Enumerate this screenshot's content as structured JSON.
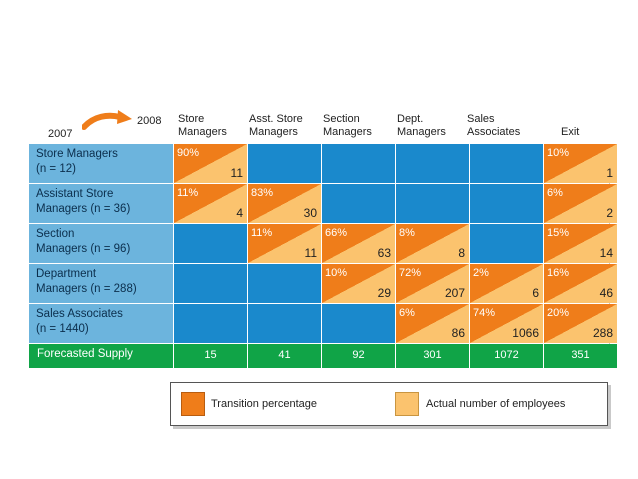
{
  "header": {
    "year_from": "2007",
    "year_to": "2008",
    "columns": [
      {
        "line1": "Store",
        "line2": "Managers"
      },
      {
        "line1": "Asst. Store",
        "line2": "Managers"
      },
      {
        "line1": "Section",
        "line2": "Managers"
      },
      {
        "line1": "Dept.",
        "line2": "Managers"
      },
      {
        "line1": "Sales",
        "line2": "Associates"
      },
      {
        "line1": "",
        "line2": "Exit"
      }
    ]
  },
  "rows": [
    {
      "label1": "Store Managers",
      "label2": "(n = 12)",
      "cells": [
        {
          "pct": "90%",
          "count": "11"
        },
        null,
        null,
        null,
        null,
        {
          "pct": "10%",
          "count": "1"
        }
      ]
    },
    {
      "label1": "Assistant Store",
      "label2": "Managers (n = 36)",
      "cells": [
        {
          "pct": "11%",
          "count": "4"
        },
        {
          "pct": "83%",
          "count": "30"
        },
        null,
        null,
        null,
        {
          "pct": "6%",
          "count": "2"
        }
      ]
    },
    {
      "label1": "Section",
      "label2": "Managers (n = 96)",
      "cells": [
        null,
        {
          "pct": "11%",
          "count": "11"
        },
        {
          "pct": "66%",
          "count": "63"
        },
        {
          "pct": "8%",
          "count": "8"
        },
        null,
        {
          "pct": "15%",
          "count": "14"
        }
      ]
    },
    {
      "label1": "Department",
      "label2": "Managers (n = 288)",
      "cells": [
        null,
        null,
        {
          "pct": "10%",
          "count": "29"
        },
        {
          "pct": "72%",
          "count": "207"
        },
        {
          "pct": "2%",
          "count": "6"
        },
        {
          "pct": "16%",
          "count": "46"
        }
      ]
    },
    {
      "label1": "Sales Associates",
      "label2": "(n = 1440)",
      "cells": [
        null,
        null,
        null,
        {
          "pct": "6%",
          "count": "86"
        },
        {
          "pct": "74%",
          "count": "1066"
        },
        {
          "pct": "20%",
          "count": "288"
        }
      ]
    }
  ],
  "supply": {
    "label": "Forecasted Supply",
    "values": [
      "15",
      "41",
      "92",
      "301",
      "1072",
      "351"
    ]
  },
  "legend": {
    "transition_label": "Transition percentage",
    "actual_label": "Actual number of employees"
  },
  "colors": {
    "transition": "#ef7d1a",
    "actual": "#fbc36e",
    "empty_cell": "#1a89cc",
    "row_label": "#6cb4dd",
    "supply": "#10a447"
  }
}
